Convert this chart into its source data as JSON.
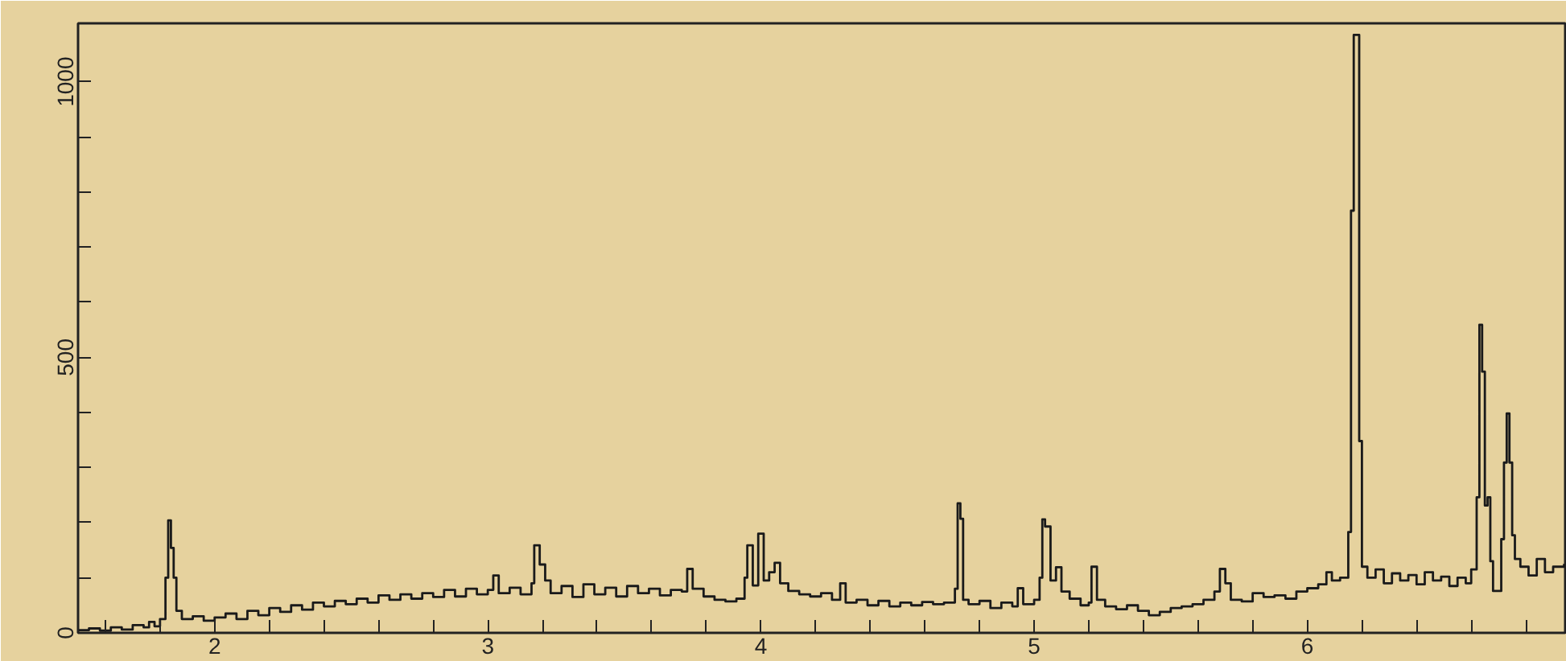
{
  "chart_data": {
    "type": "step",
    "xlim": [
      1.5,
      6.95
    ],
    "ylim": [
      0,
      1106
    ],
    "xticks": [
      {
        "value": 1.6,
        "label": null
      },
      {
        "value": 1.8,
        "label": null
      },
      2,
      {
        "value": 2.2,
        "label": null
      },
      {
        "value": 2.4,
        "label": null
      },
      {
        "value": 2.6,
        "label": null
      },
      {
        "value": 2.8,
        "label": null
      },
      3,
      {
        "value": 3.2,
        "label": null
      },
      {
        "value": 3.4,
        "label": null
      },
      {
        "value": 3.6,
        "label": null
      },
      {
        "value": 3.8,
        "label": null
      },
      4,
      {
        "value": 4.2,
        "label": null
      },
      {
        "value": 4.4,
        "label": null
      },
      {
        "value": 4.6,
        "label": null
      },
      {
        "value": 4.8,
        "label": null
      },
      5,
      {
        "value": 5.2,
        "label": null
      },
      {
        "value": 5.4,
        "label": null
      },
      {
        "value": 5.6,
        "label": null
      },
      {
        "value": 5.8,
        "label": null
      },
      6,
      {
        "value": 6.2,
        "label": null
      },
      {
        "value": 6.4,
        "label": null
      },
      {
        "value": 6.6,
        "label": null
      },
      {
        "value": 6.8,
        "label": null
      }
    ],
    "yticks": [
      0,
      {
        "value": 100,
        "label": null
      },
      {
        "value": 200,
        "label": null
      },
      {
        "value": 300,
        "label": null
      },
      {
        "value": 400,
        "label": null
      },
      500,
      {
        "value": 600,
        "label": null
      },
      {
        "value": 700,
        "label": null
      },
      {
        "value": 800,
        "label": null
      },
      {
        "value": 900,
        "label": null
      },
      1000
    ],
    "grid": false,
    "series": [
      {
        "color": "#1a1a1a",
        "x": [
          1.5,
          1.54,
          1.58,
          1.62,
          1.66,
          1.7,
          1.74,
          1.76,
          1.78,
          1.8,
          1.82,
          1.83,
          1.84,
          1.85,
          1.86,
          1.88,
          1.92,
          1.96,
          2.0,
          2.04,
          2.08,
          2.12,
          2.16,
          2.2,
          2.24,
          2.28,
          2.32,
          2.36,
          2.4,
          2.44,
          2.48,
          2.52,
          2.56,
          2.6,
          2.64,
          2.68,
          2.72,
          2.76,
          2.8,
          2.84,
          2.88,
          2.92,
          2.96,
          3.0,
          3.02,
          3.04,
          3.08,
          3.12,
          3.16,
          3.17,
          3.19,
          3.21,
          3.23,
          3.27,
          3.31,
          3.35,
          3.39,
          3.43,
          3.47,
          3.51,
          3.55,
          3.59,
          3.63,
          3.67,
          3.71,
          3.73,
          3.75,
          3.79,
          3.83,
          3.87,
          3.91,
          3.94,
          3.95,
          3.97,
          3.99,
          4.01,
          4.03,
          4.05,
          4.07,
          4.1,
          4.14,
          4.18,
          4.22,
          4.26,
          4.29,
          4.31,
          4.35,
          4.39,
          4.43,
          4.47,
          4.51,
          4.55,
          4.59,
          4.63,
          4.67,
          4.71,
          4.72,
          4.73,
          4.74,
          4.76,
          4.8,
          4.84,
          4.88,
          4.92,
          4.94,
          4.96,
          5.0,
          5.02,
          5.03,
          5.04,
          5.06,
          5.08,
          5.1,
          5.13,
          5.17,
          5.2,
          5.21,
          5.23,
          5.26,
          5.3,
          5.34,
          5.38,
          5.42,
          5.46,
          5.5,
          5.54,
          5.58,
          5.62,
          5.66,
          5.68,
          5.7,
          5.72,
          5.76,
          5.8,
          5.84,
          5.88,
          5.92,
          5.96,
          6.0,
          6.04,
          6.07,
          6.09,
          6.12,
          6.15,
          6.16,
          6.17,
          6.19,
          6.2,
          6.22,
          6.25,
          6.28,
          6.31,
          6.34,
          6.37,
          6.4,
          6.43,
          6.46,
          6.49,
          6.52,
          6.55,
          6.58,
          6.6,
          6.62,
          6.63,
          6.64,
          6.65,
          6.66,
          6.67,
          6.68,
          6.71,
          6.72,
          6.73,
          6.74,
          6.75,
          6.76,
          6.78,
          6.81,
          6.84,
          6.87,
          6.9,
          6.94
        ],
        "values": [
          5,
          8,
          4,
          10,
          6,
          14,
          10,
          20,
          12,
          25,
          100,
          204,
          154,
          100,
          40,
          25,
          30,
          22,
          28,
          35,
          25,
          40,
          32,
          45,
          38,
          50,
          42,
          55,
          48,
          58,
          52,
          62,
          55,
          68,
          60,
          70,
          62,
          72,
          65,
          78,
          66,
          80,
          70,
          78,
          104,
          72,
          82,
          70,
          90,
          159,
          124,
          95,
          72,
          85,
          65,
          88,
          70,
          82,
          66,
          85,
          72,
          80,
          68,
          78,
          75,
          116,
          80,
          66,
          60,
          57,
          62,
          100,
          159,
          86,
          180,
          95,
          110,
          127,
          90,
          76,
          70,
          66,
          72,
          60,
          90,
          55,
          60,
          50,
          58,
          48,
          55,
          50,
          56,
          52,
          55,
          80,
          235,
          207,
          60,
          52,
          58,
          45,
          55,
          48,
          81,
          52,
          60,
          100,
          206,
          193,
          95,
          119,
          75,
          62,
          50,
          55,
          120,
          60,
          48,
          43,
          50,
          40,
          32,
          38,
          45,
          48,
          52,
          60,
          75,
          116,
          90,
          60,
          57,
          72,
          65,
          68,
          62,
          75,
          81,
          88,
          110,
          95,
          100,
          183,
          766,
          1085,
          348,
          120,
          100,
          115,
          90,
          108,
          95,
          105,
          88,
          110,
          95,
          102,
          85,
          100,
          90,
          115,
          246,
          559,
          474,
          231,
          246,
          130,
          76,
          170,
          309,
          398,
          309,
          177,
          134,
          120,
          104,
          134,
          110,
          120,
          125
        ]
      }
    ]
  }
}
